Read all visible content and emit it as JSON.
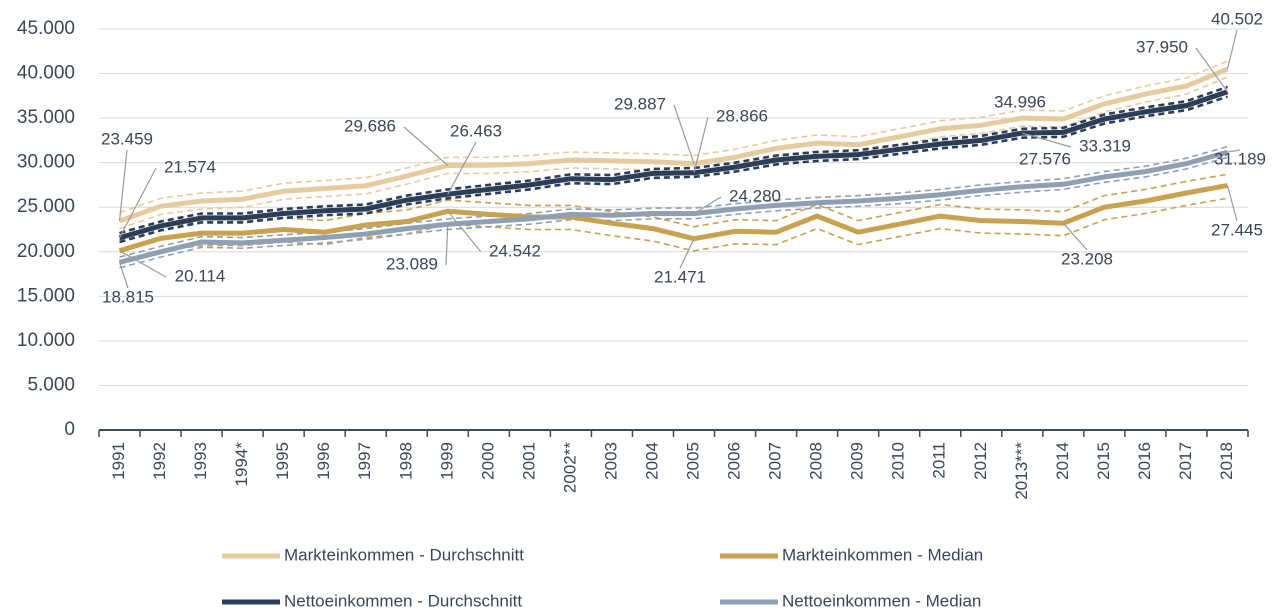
{
  "chart_data": {
    "type": "line",
    "categories": [
      "1991",
      "1992",
      "1993",
      "1994*",
      "1995",
      "1996",
      "1997",
      "1998",
      "1999",
      "2000",
      "2001",
      "2002**",
      "2003",
      "2004",
      "2005",
      "2006",
      "2007",
      "2008",
      "2009",
      "2010",
      "2011",
      "2012",
      "2013***",
      "2014",
      "2015",
      "2016",
      "2017",
      "2018"
    ],
    "ylim": [
      0,
      45000
    ],
    "yticks": [
      {
        "value": 0,
        "label": "0"
      },
      {
        "value": 5000,
        "label": "5.000"
      },
      {
        "value": 10000,
        "label": "10.000"
      },
      {
        "value": 15000,
        "label": "15.000"
      },
      {
        "value": 20000,
        "label": "20.000"
      },
      {
        "value": 25000,
        "label": "25.000"
      },
      {
        "value": 30000,
        "label": "30.000"
      },
      {
        "value": 35000,
        "label": "35.000"
      },
      {
        "value": 40000,
        "label": "40.000"
      },
      {
        "value": 45000,
        "label": "45.000"
      }
    ],
    "grid": true,
    "legend": "bottom",
    "series": [
      {
        "name": "Markteinkommen - Durchschnitt",
        "color": "#e6cb9f",
        "values": [
          23459,
          25100,
          25700,
          25900,
          26800,
          27100,
          27400,
          28500,
          29686,
          29700,
          29900,
          30300,
          30200,
          30100,
          29887,
          30600,
          31600,
          32200,
          32000,
          32900,
          33800,
          34200,
          34996,
          34900,
          36600,
          37700,
          38600,
          40502
        ],
        "upper": [
          24400,
          26000,
          26600,
          26800,
          27700,
          28000,
          28300,
          29400,
          30600,
          30600,
          30800,
          31200,
          31100,
          31000,
          30800,
          31500,
          32500,
          33100,
          32900,
          33800,
          34700,
          35100,
          35900,
          35800,
          37500,
          38600,
          39500,
          41400
        ],
        "lower": [
          22600,
          24200,
          24800,
          25000,
          25900,
          26200,
          26500,
          27600,
          28800,
          28800,
          29000,
          29400,
          29300,
          29200,
          29000,
          29700,
          30700,
          31300,
          31100,
          32000,
          32900,
          33300,
          34100,
          34000,
          35700,
          36800,
          37700,
          39600
        ]
      },
      {
        "name": "Markteinkommen - Median",
        "color": "#c8a24e",
        "values": [
          20114,
          21500,
          22100,
          22100,
          22500,
          22200,
          23000,
          23400,
          24542,
          24200,
          23900,
          23900,
          23200,
          22600,
          21471,
          22300,
          22200,
          24000,
          22200,
          23100,
          24000,
          23500,
          23400,
          23208,
          25000,
          25700,
          26600,
          27445
        ],
        "upper": [
          21400,
          22800,
          23400,
          23400,
          23800,
          23500,
          24300,
          24700,
          25800,
          25500,
          25200,
          25200,
          24500,
          23900,
          22800,
          23600,
          23500,
          25300,
          23500,
          24400,
          25300,
          24800,
          24700,
          24500,
          26300,
          27000,
          27900,
          28700
        ],
        "lower": [
          18700,
          20100,
          20700,
          20700,
          21100,
          20800,
          21600,
          22000,
          23100,
          22800,
          22500,
          22500,
          21800,
          21200,
          20100,
          20900,
          20800,
          22600,
          20800,
          21700,
          22600,
          22100,
          22000,
          21800,
          23600,
          24300,
          25200,
          26000
        ]
      },
      {
        "name": "Nettoeinkommen - Durchschnitt",
        "color": "#2b3d57",
        "values": [
          21574,
          22900,
          23800,
          23800,
          24300,
          24600,
          24800,
          25800,
          26463,
          27000,
          27500,
          28200,
          28100,
          28800,
          28866,
          29500,
          30300,
          30700,
          30900,
          31500,
          32100,
          32500,
          33319,
          33400,
          34900,
          35700,
          36400,
          37950
        ],
        "upper": [
          22100,
          23400,
          24300,
          24300,
          24800,
          25100,
          25300,
          26300,
          27000,
          27500,
          28000,
          28700,
          28600,
          29300,
          29400,
          30000,
          30800,
          31200,
          31400,
          32000,
          32600,
          33000,
          33800,
          33900,
          35400,
          36200,
          36900,
          38500
        ],
        "lower": [
          21100,
          22400,
          23300,
          23300,
          23800,
          24100,
          24300,
          25300,
          26000,
          26500,
          27000,
          27700,
          27600,
          28300,
          28400,
          29000,
          29800,
          30200,
          30400,
          31000,
          31600,
          32000,
          32800,
          32900,
          34400,
          35200,
          35900,
          37400
        ]
      },
      {
        "name": "Nettoeinkommen - Median",
        "color": "#8fa0b4",
        "values": [
          18815,
          20000,
          21100,
          21000,
          21300,
          21600,
          22000,
          22600,
          23089,
          23400,
          23700,
          24200,
          24100,
          24300,
          24280,
          24800,
          25200,
          25500,
          25700,
          26000,
          26400,
          26900,
          27300,
          27576,
          28400,
          29000,
          29900,
          31189
        ],
        "upper": [
          19400,
          20600,
          21700,
          21600,
          21900,
          22200,
          22600,
          23200,
          23700,
          24000,
          24300,
          24800,
          24700,
          24900,
          24900,
          25400,
          25800,
          26100,
          26300,
          26600,
          27000,
          27500,
          27900,
          28200,
          29000,
          29600,
          30500,
          31800
        ],
        "lower": [
          18200,
          19400,
          20500,
          20400,
          20700,
          21000,
          21400,
          22000,
          22500,
          22800,
          23100,
          23600,
          23500,
          23700,
          23700,
          24200,
          24600,
          24900,
          25100,
          25400,
          25800,
          26300,
          26700,
          27000,
          27800,
          28400,
          29300,
          30600
        ]
      }
    ],
    "annotations": [
      {
        "series": 0,
        "index": 0,
        "label": "23.459"
      },
      {
        "series": 2,
        "index": 0,
        "label": "21.574"
      },
      {
        "series": 1,
        "index": 0,
        "label": "20.114"
      },
      {
        "series": 3,
        "index": 0,
        "label": "18.815"
      },
      {
        "series": 0,
        "index": 8,
        "label": "29.686"
      },
      {
        "series": 2,
        "index": 8,
        "label": "26.463"
      },
      {
        "series": 3,
        "index": 8,
        "label": "23.089"
      },
      {
        "series": 1,
        "index": 8,
        "label": "24.542"
      },
      {
        "series": 0,
        "index": 14,
        "label": "29.887"
      },
      {
        "series": 2,
        "index": 14,
        "label": "28.866"
      },
      {
        "series": 3,
        "index": 14,
        "label": "24.280"
      },
      {
        "series": 1,
        "index": 14,
        "label": "21.471"
      },
      {
        "series": 0,
        "index": 22,
        "label": "34.996"
      },
      {
        "series": 2,
        "index": 22,
        "label": "33.319"
      },
      {
        "series": 3,
        "index": 23,
        "label": "27.576"
      },
      {
        "series": 1,
        "index": 23,
        "label": "23.208"
      },
      {
        "series": 0,
        "index": 27,
        "label": "40.502"
      },
      {
        "series": 2,
        "index": 27,
        "label": "37.950"
      },
      {
        "series": 3,
        "index": 27,
        "label": "31.189"
      },
      {
        "series": 1,
        "index": 27,
        "label": "27.445"
      }
    ]
  }
}
